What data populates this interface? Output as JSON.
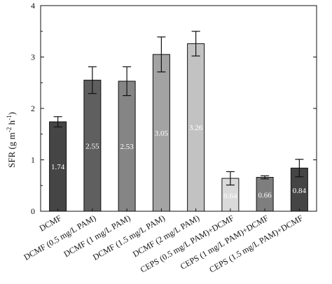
{
  "chart_data": {
    "type": "bar",
    "ylabel_parts": {
      "main": "SFR (g m",
      "sup1": "-2",
      "mid": " h",
      "sup2": "-1",
      "end": ")"
    },
    "ylim": [
      0,
      4
    ],
    "yticks": [
      "0",
      "1",
      "2",
      "3",
      "4"
    ],
    "grid": false,
    "categories": [
      "DCMF",
      "DCMF (0.5 mg/L PAM)",
      "DCMF (1 mg/L PAM)",
      "DCMF (1.5 mg/L PAM)",
      "DCMF (2 mg/L PAM)",
      "CEPS (0.5 mg/L PAM)+DCMF",
      "CEPS (1 mg/L PAM)+DCMF",
      "CEPS (1.5 mg/L PAM)+DCMF"
    ],
    "values": [
      1.74,
      2.55,
      2.53,
      3.05,
      3.26,
      0.64,
      0.66,
      0.84
    ],
    "value_labels": [
      "1.74",
      "2.55",
      "2.53",
      "3.05",
      "3.26",
      "0.64",
      "0.66",
      "0.84"
    ],
    "errors": [
      0.1,
      0.26,
      0.28,
      0.34,
      0.24,
      0.13,
      0.03,
      0.17
    ],
    "bar_colors": [
      "#454545",
      "#5f5f5f",
      "#858585",
      "#a3a3a3",
      "#c2c2c2",
      "#dadada",
      "#7e7e7e",
      "#454545"
    ]
  }
}
